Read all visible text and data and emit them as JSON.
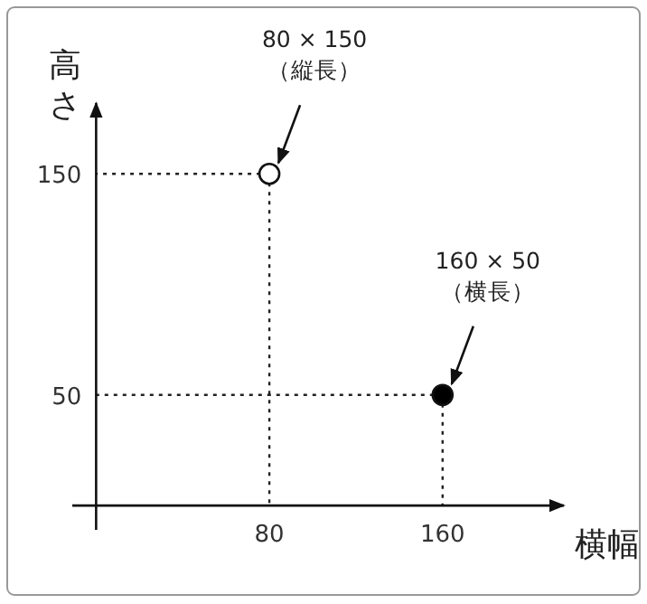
{
  "chart_data": {
    "type": "scatter",
    "xlabel": "横幅",
    "ylabel": "高さ",
    "xlim": [
      -11,
      216
    ],
    "ylim": [
      -11,
      182
    ],
    "xticks": [
      80,
      160
    ],
    "yticks": [
      50,
      150
    ],
    "grid": true,
    "marker": "circle",
    "series": [
      {
        "x": [
          80
        ],
        "values": [
          150
        ],
        "color": "#ffffff"
      },
      {
        "x": [
          160
        ],
        "values": [
          50
        ],
        "color": "#000000"
      }
    ],
    "annotations": [
      {
        "text": "80 × 150\n（縦長）",
        "x": 80,
        "y": 150
      },
      {
        "text": "160 × 50\n（横長）",
        "x": 160,
        "y": 50
      }
    ]
  }
}
